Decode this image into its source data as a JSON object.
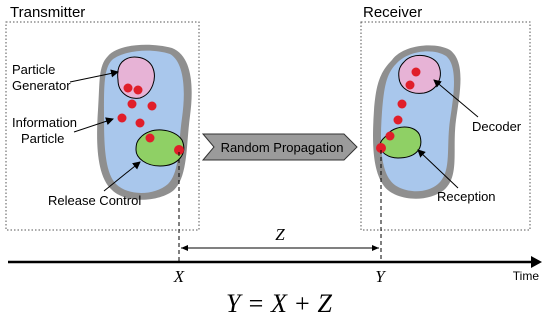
{
  "transmitter": {
    "title": "Transmitter",
    "labels": {
      "particle_generator_line1": "Particle",
      "particle_generator_line2": "Generator",
      "information_particle_line1": "Information",
      "information_particle_line2": "Particle",
      "release_control": "Release Control"
    }
  },
  "receiver": {
    "title": "Receiver",
    "labels": {
      "decoder": "Decoder",
      "reception": "Reception"
    }
  },
  "channel": {
    "label": "Random Propagation"
  },
  "timeline": {
    "axis_label": "Time",
    "x_label": "X",
    "y_label": "Y",
    "z_label": "Z",
    "equation": "Y = X + Z"
  },
  "colors": {
    "cell_outer": "#8f8f8f",
    "cell_body": "#a9c7ec",
    "generator_fill": "#e7b3d6",
    "control_fill": "#8fd065",
    "particle": "#e01e2a",
    "arrow_fill": "#9b9b9b"
  }
}
